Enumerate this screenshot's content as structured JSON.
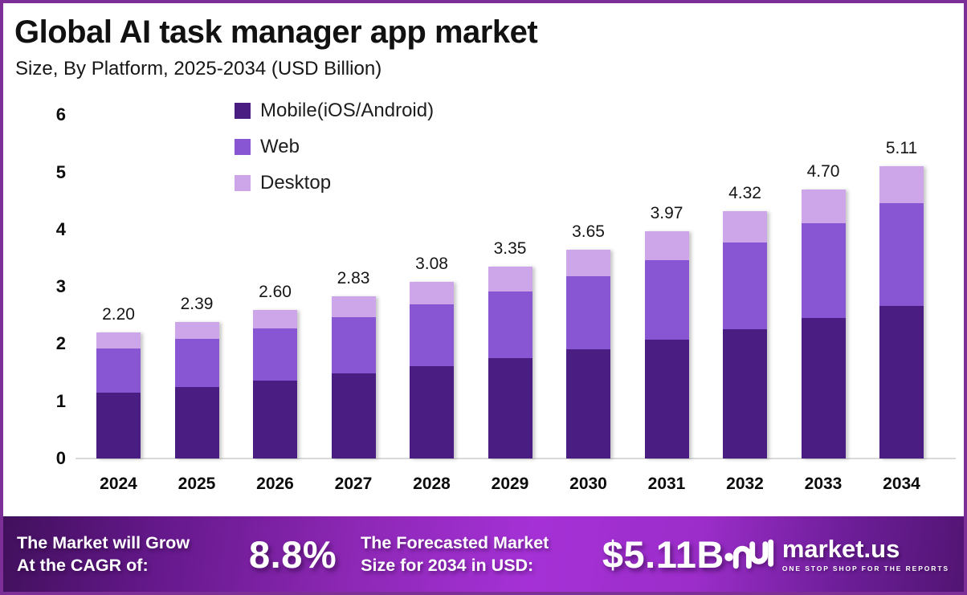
{
  "header": {
    "title": "Global AI task manager app market",
    "subtitle": "Size, By Platform, 2025-2034 (USD Billion)"
  },
  "chart_data": {
    "type": "bar",
    "stacked": true,
    "title": "Global AI task manager app market Size, By Platform, 2025-2034 (USD Billion)",
    "categories": [
      "2024",
      "2025",
      "2026",
      "2027",
      "2028",
      "2029",
      "2030",
      "2031",
      "2032",
      "2033",
      "2034"
    ],
    "series": [
      {
        "name": "Mobile(iOS/Android)",
        "color": "#4a1d82",
        "values": [
          1.15,
          1.25,
          1.36,
          1.48,
          1.61,
          1.75,
          1.91,
          2.08,
          2.26,
          2.46,
          2.67
        ]
      },
      {
        "name": "Web",
        "color": "#8956d3",
        "values": [
          0.77,
          0.84,
          0.91,
          0.99,
          1.08,
          1.17,
          1.28,
          1.39,
          1.51,
          1.65,
          1.79
        ]
      },
      {
        "name": "Desktop",
        "color": "#cda6ea",
        "values": [
          0.28,
          0.3,
          0.33,
          0.36,
          0.39,
          0.43,
          0.46,
          0.5,
          0.55,
          0.59,
          0.65
        ]
      }
    ],
    "totals": [
      2.2,
      2.39,
      2.6,
      2.83,
      3.08,
      3.35,
      3.65,
      3.97,
      4.32,
      4.7,
      5.11
    ],
    "total_labels": [
      "2.20",
      "2.39",
      "2.60",
      "2.83",
      "3.08",
      "3.35",
      "3.65",
      "3.97",
      "4.32",
      "4.70",
      "5.11"
    ],
    "xlabel": "",
    "ylabel": "",
    "ylim": [
      0,
      6
    ],
    "yticks": [
      "0",
      "1",
      "2",
      "3",
      "4",
      "5",
      "6"
    ],
    "grid": false,
    "legend_position": "top-left-inside"
  },
  "footer": {
    "grow_line1": "The Market will Grow",
    "grow_line2": "At the CAGR of:",
    "cagr_value": "8.8%",
    "forecast_line1": "The Forecasted Market",
    "forecast_line2": "Size for 2034 in USD:",
    "forecast_value": "$5.11B",
    "brand": {
      "name": "market.us",
      "tagline": "ONE STOP SHOP FOR THE REPORTS"
    }
  },
  "colors": {
    "frame_border": "#7c2f96",
    "banner_start": "#41105c",
    "banner_bright": "#a531d6",
    "banner_end": "#521573",
    "axis_line": "#d9d9d9"
  }
}
